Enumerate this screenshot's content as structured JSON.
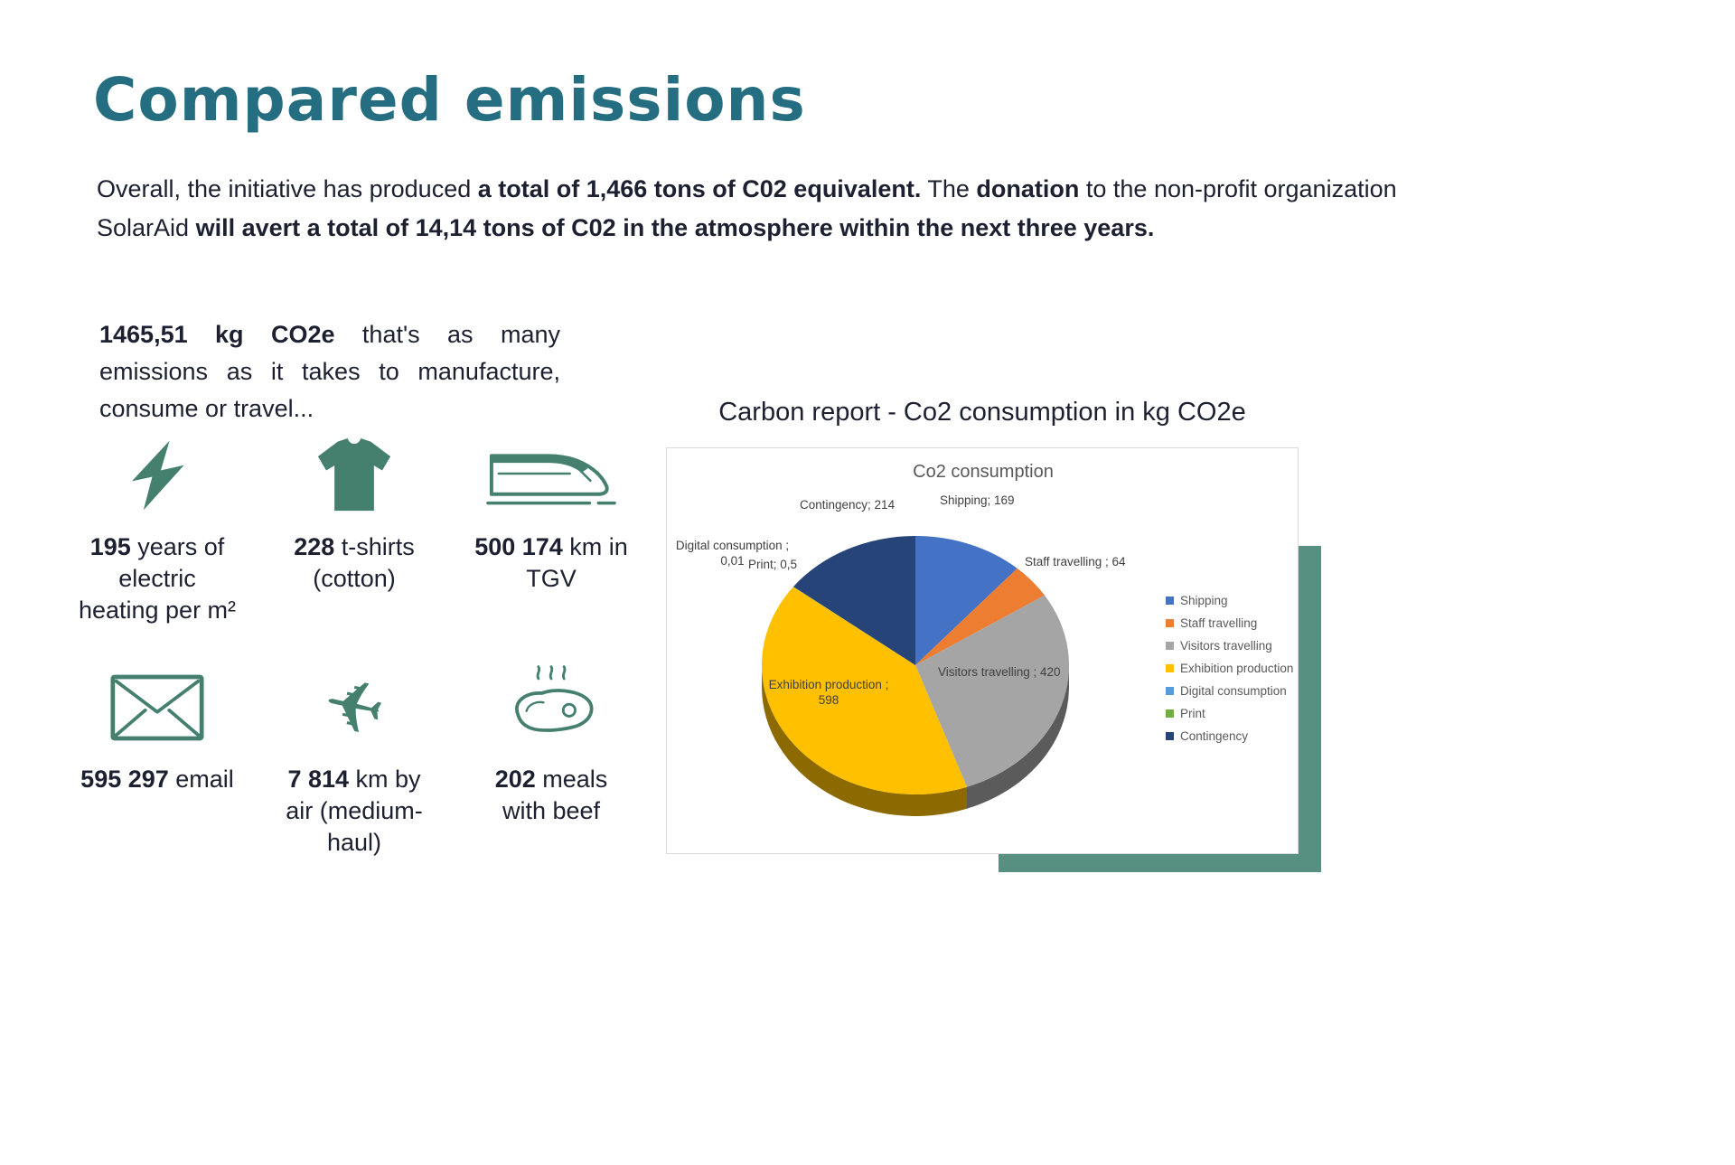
{
  "theme": {
    "heading_color": "#256e81",
    "text_color": "#1c2030",
    "icon_color": "#45806f",
    "shadow_color": "#579080",
    "chart_text_color": "#595959",
    "card_border_color": "#d9d9d9"
  },
  "page": {
    "title": "Compared emissions",
    "intro": {
      "t1": "Overall, the initiative has produced ",
      "b1": "a total of 1,466 tons of C02 equivalent.",
      "t2": " The ",
      "b2": "donation",
      "t3": " to the non-profit organization SolarAid ",
      "b3": "will avert a total of 14,14 tons of C02 in the atmosphere within the next three years."
    }
  },
  "equivalents": {
    "lead_bold": "1465,51 kg CO2e",
    "lead_rest": " that's as many emissions as it takes to manufacture, consume or travel...",
    "items": [
      {
        "icon": "lightning-icon",
        "value": "195",
        "label": " years of electric heating per m²"
      },
      {
        "icon": "tshirt-icon",
        "value": "228",
        "label": " t-shirts (cotton)"
      },
      {
        "icon": "train-icon",
        "value": "500 174",
        "label": " km in TGV"
      },
      {
        "icon": "envelope-icon",
        "value": "595 297",
        "label": " email"
      },
      {
        "icon": "plane-icon",
        "value": "7 814",
        "label": " km by air (medium-haul)"
      },
      {
        "icon": "steak-icon",
        "value": "202",
        "label": " meals with beef"
      }
    ]
  },
  "chart_section": {
    "heading": "Carbon report - Co2 consumption in kg CO2e"
  },
  "chart_data": {
    "type": "pie",
    "style": "3d",
    "title": "Co2 consumption",
    "unit": "kg CO2e",
    "total": 1465.51,
    "categories": [
      "Shipping",
      "Staff travelling",
      "Visitors travelling",
      "Exhibition production",
      "Digital consumption",
      "Print",
      "Contingency"
    ],
    "values": [
      169,
      64,
      420,
      598,
      0.01,
      0.5,
      214
    ],
    "colors": [
      "#4472C4",
      "#ED7D31",
      "#A5A5A5",
      "#FFC000",
      "#5B9BD5",
      "#70AD47",
      "#264478"
    ],
    "legend_position": "right",
    "point_labels": {
      "shipping": "Shipping; 169",
      "staff": "Staff travelling ; 64",
      "visitors": "Visitors travelling ; 420",
      "exhibition": "Exhibition production ; 598",
      "digital": "Digital consumption ; 0,01",
      "print": "Print; 0,5",
      "contingency": "Contingency; 214"
    }
  }
}
